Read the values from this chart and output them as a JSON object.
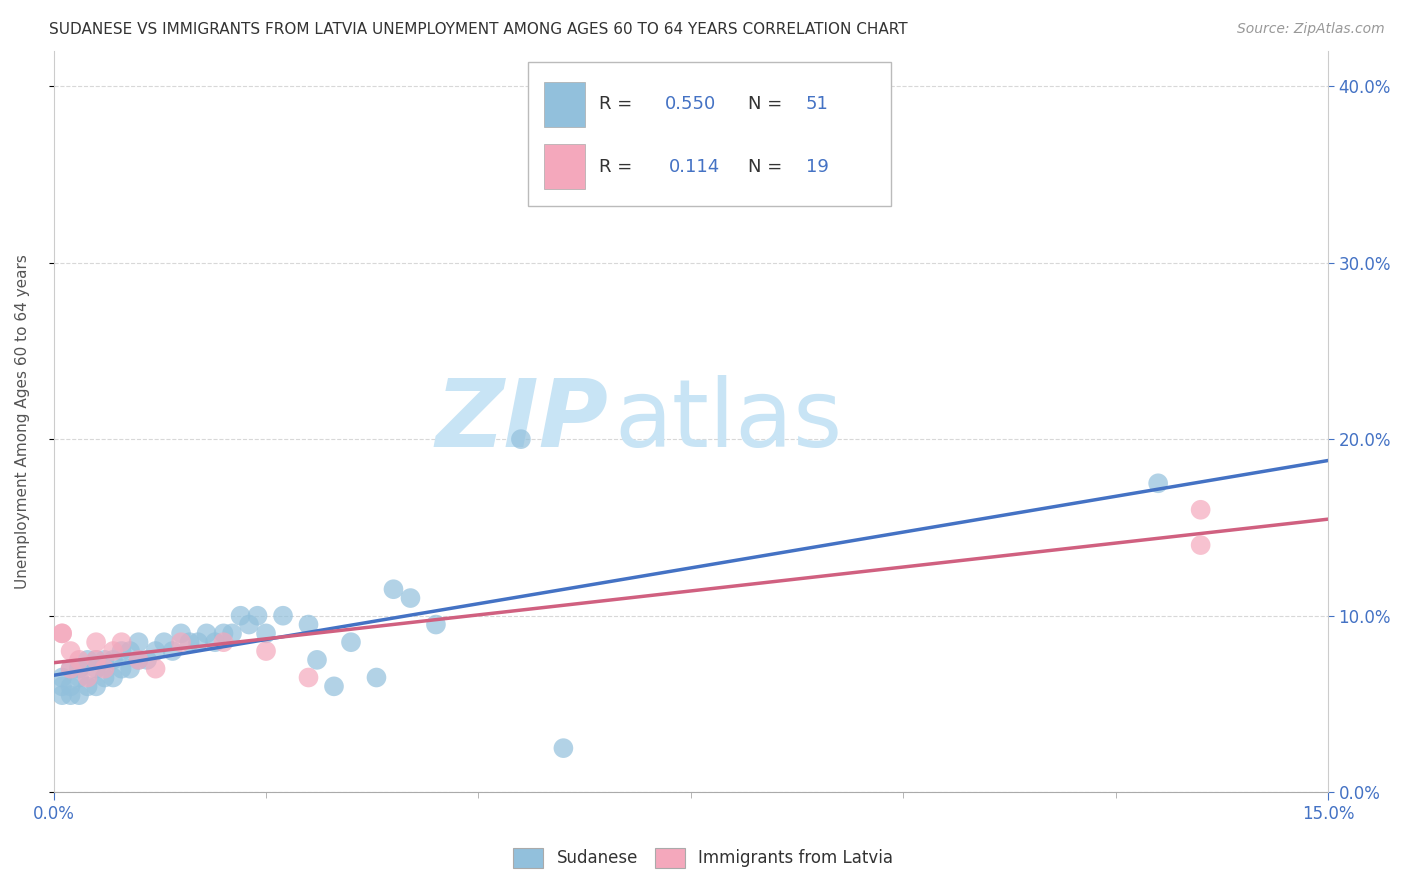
{
  "title": "SUDANESE VS IMMIGRANTS FROM LATVIA UNEMPLOYMENT AMONG AGES 60 TO 64 YEARS CORRELATION CHART",
  "source": "Source: ZipAtlas.com",
  "ylabel_label": "Unemployment Among Ages 60 to 64 years",
  "legend_bottom": [
    "Sudanese",
    "Immigrants from Latvia"
  ],
  "blue_color": "#92C0DC",
  "pink_color": "#F4A8BC",
  "blue_line_color": "#4472C4",
  "pink_line_color": "#D06080",
  "R_blue": 0.55,
  "N_blue": 51,
  "R_pink": 0.114,
  "N_pink": 19,
  "blue_scatter_x": [
    0.001,
    0.001,
    0.001,
    0.002,
    0.002,
    0.002,
    0.003,
    0.003,
    0.003,
    0.004,
    0.004,
    0.005,
    0.005,
    0.005,
    0.006,
    0.006,
    0.007,
    0.007,
    0.008,
    0.008,
    0.009,
    0.009,
    0.01,
    0.01,
    0.011,
    0.012,
    0.013,
    0.014,
    0.015,
    0.016,
    0.017,
    0.018,
    0.019,
    0.02,
    0.021,
    0.022,
    0.023,
    0.024,
    0.025,
    0.027,
    0.03,
    0.031,
    0.033,
    0.035,
    0.038,
    0.04,
    0.042,
    0.045,
    0.055,
    0.06,
    0.13
  ],
  "blue_scatter_y": [
    0.055,
    0.06,
    0.065,
    0.055,
    0.06,
    0.07,
    0.055,
    0.065,
    0.07,
    0.06,
    0.075,
    0.06,
    0.07,
    0.075,
    0.065,
    0.075,
    0.065,
    0.075,
    0.07,
    0.08,
    0.07,
    0.08,
    0.075,
    0.085,
    0.075,
    0.08,
    0.085,
    0.08,
    0.09,
    0.085,
    0.085,
    0.09,
    0.085,
    0.09,
    0.09,
    0.1,
    0.095,
    0.1,
    0.09,
    0.1,
    0.095,
    0.075,
    0.06,
    0.085,
    0.065,
    0.115,
    0.11,
    0.095,
    0.2,
    0.025,
    0.175
  ],
  "pink_scatter_x": [
    0.001,
    0.001,
    0.002,
    0.002,
    0.003,
    0.004,
    0.005,
    0.005,
    0.006,
    0.007,
    0.008,
    0.01,
    0.012,
    0.015,
    0.02,
    0.025,
    0.03,
    0.135,
    0.135
  ],
  "pink_scatter_y": [
    0.09,
    0.09,
    0.07,
    0.08,
    0.075,
    0.065,
    0.075,
    0.085,
    0.07,
    0.08,
    0.085,
    0.075,
    0.07,
    0.085,
    0.085,
    0.08,
    0.065,
    0.14,
    0.16
  ],
  "xlim": [
    0.0,
    0.15
  ],
  "ylim": [
    0.0,
    0.42
  ],
  "watermark_zip": "ZIP",
  "watermark_atlas": "atlas",
  "watermark_color": "#C8E4F5",
  "background_color": "#FFFFFF",
  "grid_color": "#D8D8D8",
  "right_tick_color": "#4472C4",
  "bottom_tick_color": "#4472C4"
}
